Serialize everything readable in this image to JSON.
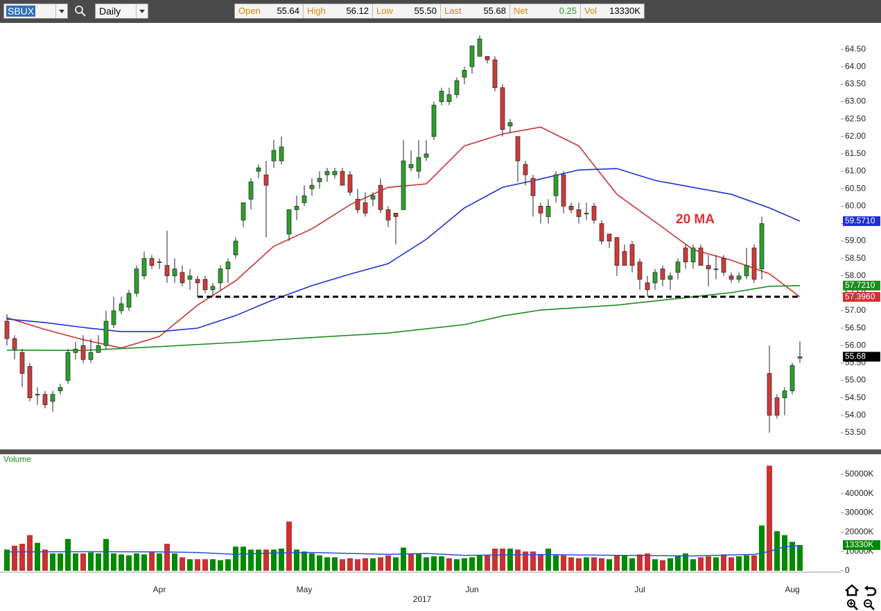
{
  "toolbar": {
    "symbol": "SBUX",
    "period": "Daily",
    "quote": [
      {
        "label": "Open",
        "value": "55.64"
      },
      {
        "label": "High",
        "value": "56.12"
      },
      {
        "label": "Low",
        "value": "55.50"
      },
      {
        "label": "Last",
        "value": "55.68"
      },
      {
        "label": "Net",
        "value": "0.25"
      },
      {
        "label": "Vol",
        "value": "13330K"
      }
    ]
  },
  "chart_data": [
    {
      "type": "candlestick",
      "categories": [
        null,
        null,
        null,
        null,
        null,
        null,
        null,
        null,
        null,
        null,
        null,
        null,
        null,
        null,
        null,
        null,
        null,
        null,
        null,
        null,
        "Apr",
        null,
        null,
        null,
        null,
        null,
        null,
        null,
        null,
        null,
        null,
        null,
        null,
        null,
        null,
        null,
        null,
        null,
        null,
        "May",
        null,
        null,
        null,
        null,
        null,
        null,
        null,
        null,
        null,
        null,
        null,
        null,
        null,
        null,
        null,
        null,
        null,
        null,
        null,
        null,
        null,
        "Jun",
        null,
        null,
        null,
        null,
        null,
        null,
        null,
        null,
        null,
        null,
        null,
        null,
        null,
        null,
        null,
        null,
        null,
        null,
        null,
        null,
        null,
        "Jul",
        null,
        null,
        null,
        null,
        null,
        null,
        null,
        null,
        null,
        null,
        null,
        null,
        null,
        null,
        null,
        null,
        null,
        null,
        null,
        "Aug",
        null
      ],
      "year_label": "2017",
      "open": [
        56.7,
        56.2,
        55.8,
        55.4,
        54.6,
        54.6,
        54.4,
        54.7,
        55.0,
        55.8,
        56.0,
        55.6,
        55.8,
        56.0,
        56.6,
        57.0,
        57.1,
        57.5,
        58.0,
        58.5,
        58.4,
        58.3,
        58.0,
        58.1,
        57.9,
        57.9,
        57.9,
        57.6,
        57.8,
        58.2,
        58.6,
        59.6,
        60.2,
        61.0,
        60.9,
        61.3,
        61.3,
        59.2,
        59.9,
        60.1,
        60.5,
        60.7,
        60.9,
        60.9,
        61.0,
        60.9,
        60.2,
        60.1,
        60.2,
        60.6,
        59.9,
        59.8,
        59.9,
        61.1,
        61.0,
        61.4,
        62.0,
        63.0,
        63.0,
        63.2,
        63.7,
        64.0,
        64.3,
        64.3,
        64.2,
        63.4,
        62.3,
        62.0,
        61.2,
        60.8,
        60.0,
        59.7,
        60.3,
        60.9,
        60.0,
        59.9,
        59.8,
        60.0,
        59.5,
        59.2,
        59.1,
        58.7,
        58.9,
        58.4,
        57.8,
        57.8,
        58.2,
        57.9,
        58.1,
        58.8,
        58.4,
        58.8,
        58.3,
        58.2,
        58.5,
        58.0,
        57.9,
        58.0,
        58.8,
        58.2,
        55.2,
        54.5,
        54.5,
        54.7,
        55.64
      ],
      "high": [
        56.9,
        56.3,
        55.9,
        55.5,
        54.8,
        54.7,
        54.7,
        54.9,
        55.9,
        56.1,
        56.3,
        56.2,
        56.3,
        57.0,
        57.4,
        57.4,
        57.6,
        58.3,
        58.7,
        58.6,
        58.5,
        59.3,
        58.5,
        58.3,
        58.2,
        58.0,
        58.0,
        57.8,
        58.3,
        58.5,
        59.1,
        60.1,
        60.8,
        61.2,
        61.3,
        61.9,
        62.0,
        59.9,
        60.3,
        60.6,
        60.8,
        61.0,
        61.1,
        61.1,
        61.1,
        61.0,
        60.5,
        60.4,
        60.4,
        60.8,
        60.0,
        59.8,
        61.9,
        61.6,
        61.9,
        61.9,
        63.0,
        63.4,
        63.4,
        63.7,
        64.0,
        64.6,
        64.9,
        64.3,
        64.3,
        63.5,
        62.5,
        62.0,
        61.3,
        60.9,
        60.1,
        60.2,
        61.0,
        61.0,
        60.1,
        60.1,
        60.1,
        60.1,
        59.6,
        59.2,
        59.1,
        58.9,
        59.0,
        58.5,
        58.0,
        58.2,
        58.3,
        58.1,
        58.5,
        58.9,
        58.9,
        58.9,
        58.6,
        58.6,
        58.6,
        58.1,
        58.1,
        58.8,
        58.9,
        59.7,
        56.0,
        54.6,
        54.8,
        55.5,
        56.12
      ],
      "low": [
        56.0,
        55.6,
        54.8,
        54.4,
        54.3,
        54.2,
        54.1,
        54.6,
        54.9,
        55.6,
        55.5,
        55.5,
        55.8,
        55.9,
        56.5,
        56.9,
        57.0,
        57.4,
        57.9,
        58.2,
        58.2,
        57.8,
        57.8,
        57.7,
        57.6,
        57.4,
        57.5,
        57.4,
        57.6,
        57.8,
        58.5,
        59.4,
        59.9,
        60.8,
        59.1,
        61.1,
        61.2,
        59.0,
        59.6,
        60.0,
        60.3,
        60.5,
        60.7,
        60.8,
        60.6,
        60.3,
        59.8,
        59.7,
        60.0,
        59.8,
        59.4,
        58.9,
        59.9,
        61.0,
        60.8,
        61.3,
        61.9,
        62.9,
        62.9,
        63.1,
        63.5,
        63.8,
        64.3,
        64.1,
        63.3,
        62.0,
        62.1,
        60.7,
        60.6,
        59.7,
        59.5,
        59.5,
        60.1,
        59.8,
        59.8,
        59.5,
        59.6,
        59.5,
        58.9,
        58.8,
        58.0,
        58.3,
        58.1,
        57.6,
        57.4,
        57.6,
        57.7,
        57.6,
        57.9,
        58.2,
        58.2,
        58.3,
        57.7,
        57.9,
        58.0,
        57.8,
        57.8,
        57.9,
        57.8,
        57.9,
        53.5,
        53.9,
        54.0,
        54.6,
        55.5
      ],
      "close": [
        56.2,
        55.9,
        55.2,
        54.5,
        54.6,
        54.3,
        54.6,
        54.8,
        55.8,
        55.9,
        55.6,
        55.8,
        56.0,
        56.7,
        57.0,
        57.2,
        57.5,
        58.2,
        58.5,
        58.3,
        58.4,
        58.0,
        58.2,
        57.8,
        58.0,
        57.8,
        57.6,
        57.7,
        58.2,
        58.4,
        59.0,
        60.1,
        60.7,
        61.1,
        60.6,
        61.6,
        61.7,
        59.9,
        60.0,
        60.3,
        60.6,
        60.8,
        61.0,
        61.0,
        60.6,
        60.4,
        59.9,
        59.8,
        60.3,
        59.9,
        59.6,
        59.7,
        61.3,
        61.2,
        61.4,
        61.5,
        62.9,
        63.3,
        63.2,
        63.6,
        63.9,
        64.6,
        64.8,
        64.2,
        63.4,
        62.2,
        62.4,
        61.3,
        60.9,
        60.3,
        59.8,
        60.0,
        60.9,
        60.0,
        59.9,
        59.7,
        59.8,
        59.6,
        59.0,
        59.0,
        58.3,
        58.3,
        58.3,
        57.9,
        57.6,
        58.1,
        57.9,
        58.0,
        58.4,
        58.4,
        58.8,
        58.3,
        58.2,
        58.2,
        58.1,
        57.9,
        58.0,
        58.3,
        57.9,
        59.5,
        54.0,
        54.0,
        54.7,
        55.43,
        55.68
      ],
      "up_color": "#2e9e2e",
      "down_color": "#d03a3a",
      "ylim": [
        53.02,
        65.22
      ],
      "yticks": [
        {
          "value": 53.5,
          "label": "53.50"
        },
        {
          "value": 54,
          "label": "54.00"
        },
        {
          "value": 54.5,
          "label": "54.50"
        },
        {
          "value": 55,
          "label": "55.00"
        },
        {
          "value": 55.5,
          "label": "55.50"
        },
        {
          "value": 56,
          "label": "56.00"
        },
        {
          "value": 56.5,
          "label": "56.50"
        },
        {
          "value": 57,
          "label": "57.00"
        },
        {
          "value": 57.5,
          "label": "57.50"
        },
        {
          "value": 58,
          "label": "58.00"
        },
        {
          "value": 58.5,
          "label": "58.50"
        },
        {
          "value": 59,
          "label": "59.00"
        },
        {
          "value": 59.5,
          "label": "59.50"
        },
        {
          "value": 60,
          "label": "60.00"
        },
        {
          "value": 60.5,
          "label": "60.50"
        },
        {
          "value": 61,
          "label": "61.00"
        },
        {
          "value": 61.5,
          "label": "61.50"
        },
        {
          "value": 62,
          "label": "62.00"
        },
        {
          "value": 62.5,
          "label": "62.50"
        },
        {
          "value": 63,
          "label": "63.00"
        },
        {
          "value": 63.5,
          "label": "63.50"
        },
        {
          "value": 64,
          "label": "64.00"
        },
        {
          "value": 64.5,
          "label": "64.50"
        }
      ],
      "series": [
        {
          "color": "#cc3333",
          "x": [
            0,
            5,
            10,
            15,
            20,
            25,
            30,
            35,
            40,
            45,
            50,
            55,
            60,
            65,
            70,
            75,
            80,
            85,
            90,
            95,
            100,
            104
          ],
          "values": [
            56.8,
            56.46,
            56.17,
            55.93,
            56.26,
            57.16,
            57.86,
            58.85,
            59.35,
            60.04,
            60.54,
            60.64,
            61.73,
            62.07,
            62.27,
            61.73,
            60.34,
            59.55,
            58.75,
            58.45,
            58.06,
            57.396
          ],
          "last_label": "57.3960"
        },
        {
          "color": "#1f2fd0",
          "x": [
            0,
            5,
            10,
            15,
            20,
            25,
            30,
            35,
            40,
            45,
            50,
            55,
            60,
            65,
            70,
            75,
            80,
            85,
            90,
            95,
            100,
            104
          ],
          "values": [
            56.76,
            56.66,
            56.52,
            56.4,
            56.4,
            56.5,
            56.86,
            57.32,
            57.72,
            58.05,
            58.35,
            59.05,
            59.95,
            60.54,
            60.78,
            61.04,
            61.08,
            60.74,
            60.54,
            60.34,
            59.95,
            59.571
          ],
          "last_label": "59.5710"
        },
        {
          "color": "#1e8c1e",
          "x": [
            0,
            10,
            20,
            30,
            40,
            50,
            60,
            65,
            70,
            80,
            90,
            95,
            100,
            104
          ],
          "values": [
            55.87,
            55.86,
            55.97,
            56.09,
            56.23,
            56.36,
            56.6,
            56.85,
            57.02,
            57.16,
            57.4,
            57.52,
            57.7,
            57.721
          ],
          "last_label": "57.7210"
        }
      ],
      "annotation": "20 MA",
      "annotation_color": "#e03030",
      "support_level": 57.4
    },
    {
      "type": "bar",
      "title": "Volume",
      "values": [
        11000,
        13000,
        14000,
        18500,
        14500,
        11000,
        9000,
        9000,
        16500,
        9000,
        9000,
        9500,
        9000,
        16500,
        9000,
        8500,
        8000,
        9000,
        8500,
        9500,
        9000,
        14000,
        9000,
        7000,
        6000,
        6000,
        6000,
        6000,
        5500,
        6000,
        12500,
        12500,
        11000,
        11000,
        11000,
        11000,
        11500,
        25500,
        11000,
        10000,
        9000,
        8000,
        7000,
        7000,
        6000,
        6500,
        6000,
        6500,
        6500,
        7000,
        8000,
        7000,
        12000,
        9000,
        9000,
        7000,
        7500,
        7500,
        6500,
        6000,
        6500,
        7000,
        8000,
        8000,
        11500,
        11500,
        11500,
        11000,
        10000,
        10000,
        8500,
        11500,
        8000,
        8000,
        7000,
        6500,
        7000,
        7000,
        6500,
        6000,
        8000,
        8000,
        6500,
        8500,
        9000,
        6000,
        5500,
        6500,
        8000,
        9000,
        6000,
        7000,
        7500,
        7000,
        8500,
        7000,
        7500,
        8000,
        8000,
        23500,
        54500,
        20500,
        18500,
        15000,
        13330
      ],
      "last_label": "13330K",
      "up_color": "#008a00",
      "down_color": "#c83232",
      "ylim": [
        0,
        60400
      ],
      "yticks": [
        0,
        {
          "value": 10000,
          "label": "10000K"
        },
        {
          "value": 20000,
          "label": "20000K"
        },
        {
          "value": 30000,
          "label": "30000K"
        },
        {
          "value": 40000,
          "label": "40000K"
        },
        {
          "value": 50000,
          "label": "50000K"
        }
      ],
      "series": [
        {
          "color": "#2a4fd6",
          "x": [
            0,
            10,
            20,
            25,
            30,
            35,
            40,
            50,
            55,
            60,
            70,
            80,
            90,
            98,
            100,
            102,
            104
          ],
          "values": [
            9800,
            9900,
            9800,
            9500,
            8500,
            9200,
            9500,
            8500,
            9000,
            8000,
            8400,
            8000,
            7700,
            8500,
            10000,
            12500,
            13000
          ]
        }
      ]
    }
  ]
}
